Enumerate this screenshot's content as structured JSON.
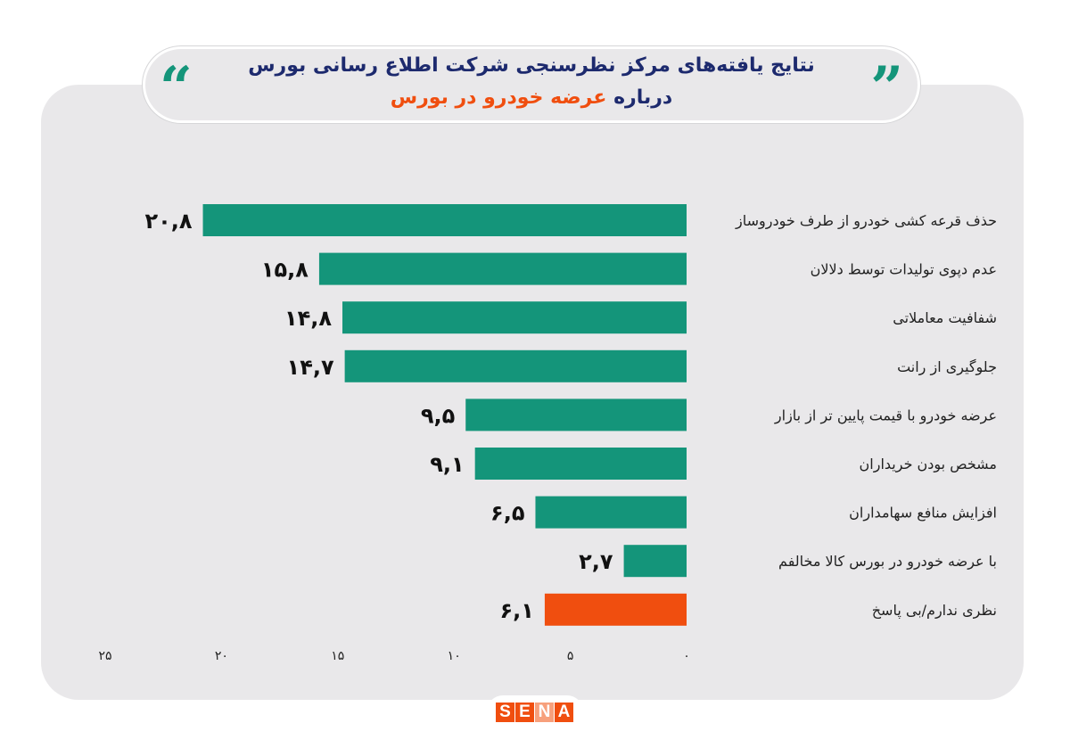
{
  "header": {
    "title_line1": "نتایج یافته‌های مرکز نظرسنجی شرکت اطلاع رسانی بورس",
    "title_line2_prefix": "درباره",
    "title_line2_highlight": "عرضه خودرو در بورس",
    "quote_open": "“",
    "quote_close": "”"
  },
  "logo": {
    "text": "SENA",
    "letters": [
      "S",
      "E",
      "N",
      "A"
    ]
  },
  "colors": {
    "bar": "#14957a",
    "highlight_bar": "#f04e0f",
    "title": "#1d2a6e",
    "accent": "#f04e0f",
    "panel": "#e9e8ea"
  },
  "chart_data": {
    "type": "bar",
    "orientation": "horizontal",
    "direction": "right-to-left",
    "categories": [
      "حذف قرعه کشی خودرو از طرف خودروساز",
      "عدم دپوی تولیدات توسط دلالان",
      "شفافیت معاملاتی",
      "جلوگیری از رانت",
      "عرضه خودرو با قیمت پایین تر از بازار",
      "مشخص بودن خریداران",
      "افزایش منافع سهامداران",
      "با عرضه خودرو در بورس کالا مخالفم",
      "نظری ندارم/بی پاسخ"
    ],
    "values": [
      20.8,
      15.8,
      14.8,
      14.7,
      9.5,
      9.1,
      6.5,
      2.7,
      6.1
    ],
    "value_labels": [
      "۲۰,۸",
      "۱۵,۸",
      "۱۴,۸",
      "۱۴,۷",
      "۹,۵",
      "۹,۱",
      "۶,۵",
      "۲,۷",
      "۶,۱"
    ],
    "highlighted": [
      false,
      false,
      false,
      false,
      false,
      false,
      false,
      false,
      true
    ],
    "xlim": [
      0,
      25
    ],
    "xticks": [
      0,
      5,
      10,
      15,
      20,
      25
    ],
    "xtick_labels": [
      "۰",
      "۵",
      "۱۰",
      "۱۵",
      "۲۰",
      "۲۵"
    ],
    "grid": false,
    "title": "",
    "xlabel": "",
    "ylabel": ""
  }
}
